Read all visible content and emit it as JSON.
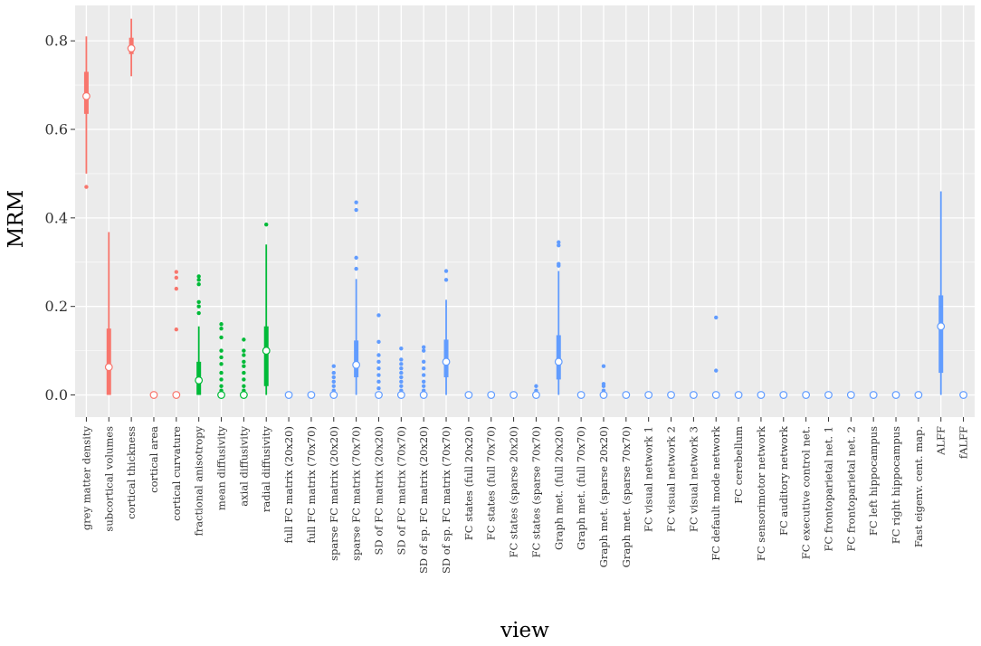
{
  "chart_data": {
    "type": "boxplot",
    "xlabel": "view",
    "ylabel": "MRM",
    "ylim": [
      -0.05,
      0.88
    ],
    "yticks": [
      0.0,
      0.2,
      0.4,
      0.6,
      0.8
    ],
    "ytick_labels": [
      "0.0",
      "0.2",
      "0.4",
      "0.6",
      "0.8"
    ],
    "grid": true,
    "colors": {
      "red": "#F8766D",
      "green": "#00BA38",
      "blue": "#619CFF",
      "panel": "#EBEBEB"
    },
    "categories": [
      "grey matter density",
      "subcortical volumes",
      "cortical thickness",
      "cortical area",
      "cortical curvature",
      "fractional anisotropy",
      "mean diffusivity",
      "axial diffusivity",
      "radial diffusivity",
      "full FC matrix (20x20)",
      "full FC matrix (70x70)",
      "sparse FC matrix (20x20)",
      "sparse FC matrix (70x70)",
      "SD of FC matrix (20x20)",
      "SD of FC matrix (70x70)",
      "SD of sp. FC matrix (20x20)",
      "SD of sp. FC matrix (70x70)",
      "FC states (full 20x20)",
      "FC states (full 70x70)",
      "FC states (sparse 20x20)",
      "FC states (sparse 70x70)",
      "Graph met. (full 20x20)",
      "Graph met. (full 70x70)",
      "Graph met. (sparse 20x20)",
      "Graph met. (sparse 70x70)",
      "FC visual network 1",
      "FC visual network 2",
      "FC visual network 3",
      "FC default mode network",
      "FC cerebellum",
      "FC sensorimotor network",
      "FC auditory network",
      "FC executive control net.",
      "FC frontoparietal net. 1",
      "FC frontoparietal net. 2",
      "FC left hippocampus",
      "FC right hippocampus",
      "Fast eigenv. cent. map.",
      "ALFF",
      "fALFF"
    ],
    "series": [
      {
        "color": "red",
        "whisker_low": 0.5,
        "q1": 0.635,
        "median": 0.675,
        "q3": 0.73,
        "whisker_high": 0.81,
        "outliers": [
          0.47
        ]
      },
      {
        "color": "red",
        "whisker_low": 0.0,
        "q1": 0.0,
        "median": 0.063,
        "q3": 0.15,
        "whisker_high": 0.368,
        "outliers": []
      },
      {
        "color": "red",
        "whisker_low": 0.72,
        "q1": 0.77,
        "median": 0.783,
        "q3": 0.807,
        "whisker_high": 0.85,
        "outliers": []
      },
      {
        "color": "red",
        "whisker_low": 0.0,
        "q1": 0.0,
        "median": 0.0,
        "q3": 0.0,
        "whisker_high": 0.0,
        "outliers": []
      },
      {
        "color": "red",
        "whisker_low": 0.0,
        "q1": 0.0,
        "median": 0.0,
        "q3": 0.0,
        "whisker_high": 0.0,
        "outliers": [
          0.148,
          0.24,
          0.265,
          0.278
        ]
      },
      {
        "color": "green",
        "whisker_low": 0.0,
        "q1": 0.0,
        "median": 0.033,
        "q3": 0.075,
        "whisker_high": 0.155,
        "outliers": [
          0.185,
          0.2,
          0.21,
          0.25,
          0.26,
          0.268
        ]
      },
      {
        "color": "green",
        "whisker_low": 0.0,
        "q1": 0.0,
        "median": 0.0,
        "q3": 0.0,
        "whisker_high": 0.0,
        "outliers": [
          0.01,
          0.02,
          0.035,
          0.05,
          0.07,
          0.085,
          0.1,
          0.13,
          0.15,
          0.16
        ]
      },
      {
        "color": "green",
        "whisker_low": 0.0,
        "q1": 0.0,
        "median": 0.0,
        "q3": 0.0,
        "whisker_high": 0.0,
        "outliers": [
          0.01,
          0.02,
          0.035,
          0.05,
          0.065,
          0.075,
          0.09,
          0.1,
          0.125
        ]
      },
      {
        "color": "green",
        "whisker_low": 0.0,
        "q1": 0.02,
        "median": 0.1,
        "q3": 0.155,
        "whisker_high": 0.34,
        "outliers": [
          0.385
        ]
      },
      {
        "color": "blue",
        "whisker_low": 0.0,
        "q1": 0.0,
        "median": 0.0,
        "q3": 0.0,
        "whisker_high": 0.0,
        "outliers": []
      },
      {
        "color": "blue",
        "whisker_low": 0.0,
        "q1": 0.0,
        "median": 0.0,
        "q3": 0.0,
        "whisker_high": 0.0,
        "outliers": []
      },
      {
        "color": "blue",
        "whisker_low": 0.0,
        "q1": 0.0,
        "median": 0.0,
        "q3": 0.0,
        "whisker_high": 0.0,
        "outliers": [
          0.01,
          0.02,
          0.03,
          0.04,
          0.05,
          0.065
        ]
      },
      {
        "color": "blue",
        "whisker_low": 0.0,
        "q1": 0.04,
        "median": 0.068,
        "q3": 0.123,
        "whisker_high": 0.262,
        "outliers": [
          0.285,
          0.31,
          0.418,
          0.435
        ]
      },
      {
        "color": "blue",
        "whisker_low": 0.0,
        "q1": 0.0,
        "median": 0.0,
        "q3": 0.0,
        "whisker_high": 0.0,
        "outliers": [
          0.015,
          0.03,
          0.045,
          0.06,
          0.075,
          0.09,
          0.12,
          0.18
        ]
      },
      {
        "color": "blue",
        "whisker_low": 0.0,
        "q1": 0.0,
        "median": 0.0,
        "q3": 0.0,
        "whisker_high": 0.0,
        "outliers": [
          0.01,
          0.02,
          0.03,
          0.04,
          0.05,
          0.06,
          0.07,
          0.08,
          0.105
        ]
      },
      {
        "color": "blue",
        "whisker_low": 0.0,
        "q1": 0.0,
        "median": 0.0,
        "q3": 0.0,
        "whisker_high": 0.0,
        "outliers": [
          0.01,
          0.02,
          0.03,
          0.045,
          0.06,
          0.075,
          0.1,
          0.108
        ]
      },
      {
        "color": "blue",
        "whisker_low": 0.0,
        "q1": 0.04,
        "median": 0.075,
        "q3": 0.125,
        "whisker_high": 0.215,
        "outliers": [
          0.26,
          0.28
        ]
      },
      {
        "color": "blue",
        "whisker_low": 0.0,
        "q1": 0.0,
        "median": 0.0,
        "q3": 0.0,
        "whisker_high": 0.0,
        "outliers": []
      },
      {
        "color": "blue",
        "whisker_low": 0.0,
        "q1": 0.0,
        "median": 0.0,
        "q3": 0.0,
        "whisker_high": 0.0,
        "outliers": []
      },
      {
        "color": "blue",
        "whisker_low": 0.0,
        "q1": 0.0,
        "median": 0.0,
        "q3": 0.0,
        "whisker_high": 0.0,
        "outliers": []
      },
      {
        "color": "blue",
        "whisker_low": 0.0,
        "q1": 0.0,
        "median": 0.0,
        "q3": 0.0,
        "whisker_high": 0.0,
        "outliers": [
          0.01,
          0.02
        ]
      },
      {
        "color": "blue",
        "whisker_low": 0.0,
        "q1": 0.035,
        "median": 0.075,
        "q3": 0.135,
        "whisker_high": 0.28,
        "outliers": [
          0.292,
          0.296,
          0.338,
          0.345
        ]
      },
      {
        "color": "blue",
        "whisker_low": 0.0,
        "q1": 0.0,
        "median": 0.0,
        "q3": 0.0,
        "whisker_high": 0.0,
        "outliers": []
      },
      {
        "color": "blue",
        "whisker_low": 0.0,
        "q1": 0.0,
        "median": 0.0,
        "q3": 0.0,
        "whisker_high": 0.0,
        "outliers": [
          0.01,
          0.02,
          0.025,
          0.065
        ]
      },
      {
        "color": "blue",
        "whisker_low": 0.0,
        "q1": 0.0,
        "median": 0.0,
        "q3": 0.0,
        "whisker_high": 0.0,
        "outliers": []
      },
      {
        "color": "blue",
        "whisker_low": 0.0,
        "q1": 0.0,
        "median": 0.0,
        "q3": 0.0,
        "whisker_high": 0.0,
        "outliers": []
      },
      {
        "color": "blue",
        "whisker_low": 0.0,
        "q1": 0.0,
        "median": 0.0,
        "q3": 0.0,
        "whisker_high": 0.0,
        "outliers": []
      },
      {
        "color": "blue",
        "whisker_low": 0.0,
        "q1": 0.0,
        "median": 0.0,
        "q3": 0.0,
        "whisker_high": 0.0,
        "outliers": []
      },
      {
        "color": "blue",
        "whisker_low": 0.0,
        "q1": 0.0,
        "median": 0.0,
        "q3": 0.0,
        "whisker_high": 0.0,
        "outliers": [
          0.055,
          0.175
        ]
      },
      {
        "color": "blue",
        "whisker_low": 0.0,
        "q1": 0.0,
        "median": 0.0,
        "q3": 0.0,
        "whisker_high": 0.0,
        "outliers": []
      },
      {
        "color": "blue",
        "whisker_low": 0.0,
        "q1": 0.0,
        "median": 0.0,
        "q3": 0.0,
        "whisker_high": 0.0,
        "outliers": []
      },
      {
        "color": "blue",
        "whisker_low": 0.0,
        "q1": 0.0,
        "median": 0.0,
        "q3": 0.0,
        "whisker_high": 0.0,
        "outliers": []
      },
      {
        "color": "blue",
        "whisker_low": 0.0,
        "q1": 0.0,
        "median": 0.0,
        "q3": 0.0,
        "whisker_high": 0.0,
        "outliers": [
          0.004
        ]
      },
      {
        "color": "blue",
        "whisker_low": 0.0,
        "q1": 0.0,
        "median": 0.0,
        "q3": 0.0,
        "whisker_high": 0.0,
        "outliers": []
      },
      {
        "color": "blue",
        "whisker_low": 0.0,
        "q1": 0.0,
        "median": 0.0,
        "q3": 0.0,
        "whisker_high": 0.0,
        "outliers": []
      },
      {
        "color": "blue",
        "whisker_low": 0.0,
        "q1": 0.0,
        "median": 0.0,
        "q3": 0.0,
        "whisker_high": 0.0,
        "outliers": []
      },
      {
        "color": "blue",
        "whisker_low": 0.0,
        "q1": 0.0,
        "median": 0.0,
        "q3": 0.0,
        "whisker_high": 0.0,
        "outliers": []
      },
      {
        "color": "blue",
        "whisker_low": 0.0,
        "q1": 0.0,
        "median": 0.0,
        "q3": 0.0,
        "whisker_high": 0.0,
        "outliers": []
      },
      {
        "color": "blue",
        "whisker_low": 0.0,
        "q1": 0.05,
        "median": 0.155,
        "q3": 0.225,
        "whisker_high": 0.46,
        "outliers": []
      },
      {
        "color": "blue",
        "whisker_low": 0.0,
        "q1": 0.0,
        "median": 0.0,
        "q3": 0.0,
        "whisker_high": 0.0,
        "outliers": []
      }
    ]
  }
}
